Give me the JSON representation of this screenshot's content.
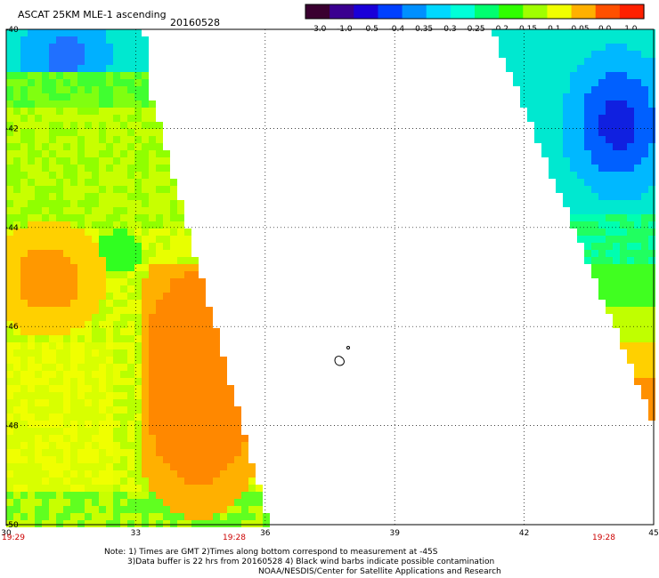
{
  "header": {
    "title": "ASCAT 25KM MLE-1 ascending",
    "date": "20160528"
  },
  "colorbar": {
    "labels": [
      "-3.0",
      "-1.0",
      "-0.5",
      "-0.4",
      "-0.35",
      "-0.3",
      "-0.25",
      "-0.2",
      "-0.15",
      "-0.1",
      "-0.05",
      "0.0",
      "1.0"
    ],
    "colors": [
      "#3a0030",
      "#3a0090",
      "#1a00d8",
      "#0040ff",
      "#0090ff",
      "#00d8ff",
      "#00ffd8",
      "#00ff70",
      "#30ff00",
      "#a0ff00",
      "#f0ff00",
      "#ffb000",
      "#ff5000",
      "#ff2000"
    ]
  },
  "map": {
    "lat_labels": [
      "-40",
      "-42",
      "-44",
      "-46",
      "-48",
      "-50"
    ],
    "lon_labels": [
      "30",
      "33",
      "36",
      "39",
      "42",
      "45"
    ],
    "time_labels": {
      "left_start": "19:29",
      "left_end": "19:28",
      "right_end": "19:28"
    }
  },
  "notes": {
    "line1": "Note: 1) Times are GMT 2)Times along bottom correspond to measurement at -45S",
    "line2": "3)Data buffer is 22 hrs from 20160528 4) Black wind barbs indicate possible contamination",
    "line3": "NOAA/NESDIS/Center for Satellite Applications and Research"
  }
}
